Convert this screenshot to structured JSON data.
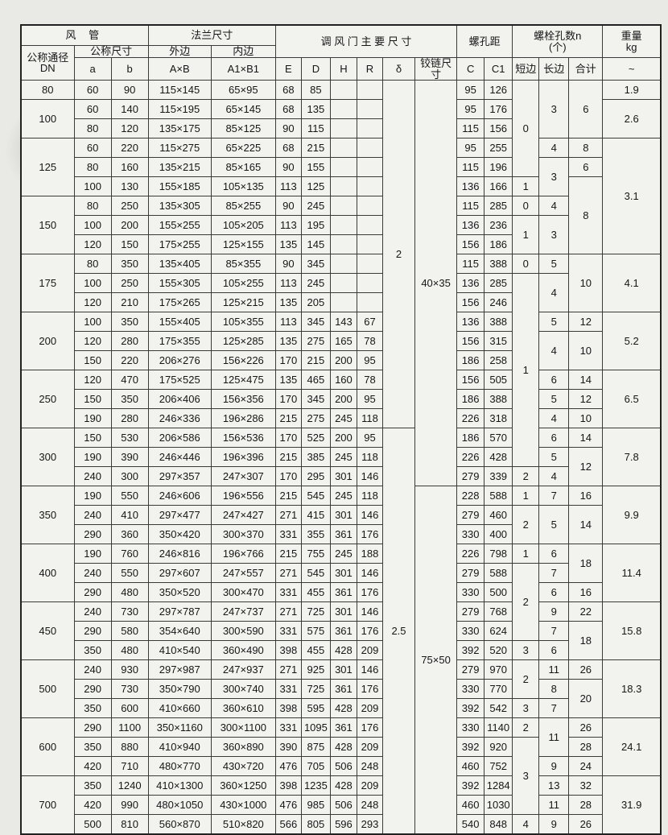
{
  "document": {
    "kind": "scanned specification table",
    "language": "zh-CN"
  },
  "table": {
    "columns": [
      "dn",
      "a",
      "b",
      "outer_AxB",
      "inner_A1xB1",
      "E",
      "D",
      "H",
      "R",
      "delta",
      "hinge_size",
      "C",
      "C1",
      "bolt_short_side",
      "bolt_long_side",
      "bolt_total",
      "weight_kg"
    ],
    "header": {
      "top": [
        {
          "label": "风        管",
          "cs": 3,
          "rs": 1
        },
        {
          "label": "法兰尺寸",
          "cs": 2,
          "rs": 1
        },
        {
          "label": "调 风 门 主 要 尺 寸",
          "cs": 6,
          "rs": 2
        },
        {
          "label": "螺孔距",
          "cs": 2,
          "rs": 2
        },
        {
          "label": "螺栓孔数n\n(个)",
          "cs": 3,
          "rs": 2
        },
        {
          "label": "重量\nkg",
          "cs": 1,
          "rs": 2
        }
      ],
      "mid": [
        {
          "label": "公称通径\nDN",
          "cs": 1,
          "rs": 2
        },
        {
          "label": "公称尺寸",
          "cs": 2,
          "rs": 1
        },
        {
          "label": "外边",
          "cs": 1,
          "rs": 1
        },
        {
          "label": "内边",
          "cs": 1,
          "rs": 1
        }
      ],
      "bottom": [
        "a",
        "b",
        "A×B",
        "A1×B1",
        "E",
        "D",
        "H",
        "R",
        "δ",
        "铰链尺寸",
        "C",
        "C1",
        "短边",
        "长边",
        "合计",
        "~"
      ]
    },
    "rows": [
      [
        "80",
        "60",
        "90",
        "115×145",
        "65×95",
        "68",
        "85",
        "",
        "",
        [
          "2",
          18
        ],
        [
          "40×35",
          21
        ],
        "95",
        "126",
        [
          "0",
          5
        ],
        [
          "3",
          3
        ],
        [
          "6",
          3
        ],
        "1.9"
      ],
      [
        [
          "100",
          2
        ],
        "60",
        "140",
        "115×195",
        "65×145",
        "68",
        "135",
        "",
        "",
        null,
        null,
        "95",
        "176",
        null,
        null,
        null,
        [
          "2.6",
          2
        ]
      ],
      [
        null,
        "80",
        "120",
        "135×175",
        "85×125",
        "90",
        "115",
        "",
        "",
        null,
        null,
        "115",
        "156",
        null,
        null,
        null,
        null
      ],
      [
        [
          "125",
          3
        ],
        "60",
        "220",
        "115×275",
        "65×225",
        "68",
        "215",
        "",
        "",
        null,
        null,
        "95",
        "255",
        null,
        "4",
        "8",
        [
          "3.1",
          6
        ]
      ],
      [
        null,
        "80",
        "160",
        "135×215",
        "85×165",
        "90",
        "155",
        "",
        "",
        null,
        null,
        "115",
        "196",
        null,
        [
          "3",
          2
        ],
        "6",
        null
      ],
      [
        null,
        "100",
        "130",
        "155×185",
        "105×135",
        "113",
        "125",
        "",
        "",
        null,
        null,
        "136",
        "166",
        "1",
        null,
        [
          "8",
          4
        ],
        null
      ],
      [
        [
          "150",
          3
        ],
        "80",
        "250",
        "135×305",
        "85×255",
        "90",
        "245",
        "",
        "",
        null,
        null,
        "115",
        "285",
        "0",
        "4",
        null,
        null
      ],
      [
        null,
        "100",
        "200",
        "155×255",
        "105×205",
        "113",
        "195",
        "",
        "",
        null,
        null,
        "136",
        "236",
        [
          "1",
          2
        ],
        [
          "3",
          2
        ],
        null,
        null
      ],
      [
        null,
        "120",
        "150",
        "175×255",
        "125×155",
        "135",
        "145",
        "",
        "",
        null,
        null,
        "156",
        "186",
        null,
        null,
        null,
        null
      ],
      [
        [
          "175",
          3
        ],
        "80",
        "350",
        "135×405",
        "85×355",
        "90",
        "345",
        "",
        "",
        null,
        null,
        "115",
        "388",
        "0",
        "5",
        [
          "10",
          3
        ],
        [
          "4.1",
          3
        ]
      ],
      [
        null,
        "100",
        "250",
        "155×305",
        "105×255",
        "113",
        "245",
        "",
        "",
        null,
        null,
        "136",
        "285",
        [
          "1",
          10
        ],
        [
          "4",
          2
        ],
        null,
        null
      ],
      [
        null,
        "120",
        "210",
        "175×265",
        "125×215",
        "135",
        "205",
        "",
        "",
        null,
        null,
        "156",
        "246",
        null,
        null,
        null,
        null
      ],
      [
        [
          "200",
          3
        ],
        "100",
        "350",
        "155×405",
        "105×355",
        "113",
        "345",
        "143",
        "67",
        null,
        null,
        "136",
        "388",
        null,
        "5",
        "12",
        [
          "5.2",
          3
        ]
      ],
      [
        null,
        "120",
        "280",
        "175×355",
        "125×285",
        "135",
        "275",
        "165",
        "78",
        null,
        null,
        "156",
        "315",
        null,
        [
          "4",
          2
        ],
        [
          "10",
          2
        ],
        null
      ],
      [
        null,
        "150",
        "220",
        "206×276",
        "156×226",
        "170",
        "215",
        "200",
        "95",
        null,
        null,
        "186",
        "258",
        null,
        null,
        null,
        null
      ],
      [
        [
          "250",
          3
        ],
        "120",
        "470",
        "175×525",
        "125×475",
        "135",
        "465",
        "160",
        "78",
        null,
        null,
        "156",
        "505",
        null,
        "6",
        "14",
        [
          "6.5",
          3
        ]
      ],
      [
        null,
        "150",
        "350",
        "206×406",
        "156×356",
        "170",
        "345",
        "200",
        "95",
        null,
        null,
        "186",
        "388",
        null,
        "5",
        "12",
        null
      ],
      [
        null,
        "190",
        "280",
        "246×336",
        "196×286",
        "215",
        "275",
        "245",
        "118",
        null,
        null,
        "226",
        "318",
        null,
        "4",
        "10",
        null
      ],
      [
        [
          "300",
          3
        ],
        "150",
        "530",
        "206×586",
        "156×536",
        "170",
        "525",
        "200",
        "95",
        [
          "2.5",
          21
        ],
        null,
        "186",
        "570",
        null,
        "6",
        "14",
        [
          "7.8",
          3
        ]
      ],
      [
        null,
        "190",
        "390",
        "246×446",
        "196×396",
        "215",
        "385",
        "245",
        "118",
        null,
        null,
        "226",
        "428",
        null,
        "5",
        [
          "12",
          2
        ],
        null
      ],
      [
        null,
        "240",
        "300",
        "297×357",
        "247×307",
        "170",
        "295",
        "301",
        "146",
        null,
        null,
        "279",
        "339",
        "2",
        "4",
        null,
        null
      ],
      [
        [
          "350",
          3
        ],
        "190",
        "550",
        "246×606",
        "196×556",
        "215",
        "545",
        "245",
        "118",
        null,
        [
          "75×50",
          18
        ],
        "228",
        "588",
        "1",
        "7",
        "16",
        [
          "9.9",
          3
        ]
      ],
      [
        null,
        "240",
        "410",
        "297×477",
        "247×427",
        "271",
        "415",
        "301",
        "146",
        null,
        null,
        "279",
        "460",
        [
          "2",
          2
        ],
        [
          "5",
          2
        ],
        [
          "14",
          2
        ],
        null
      ],
      [
        null,
        "290",
        "360",
        "350×420",
        "300×370",
        "331",
        "355",
        "361",
        "176",
        null,
        null,
        "330",
        "400",
        null,
        null,
        null,
        null
      ],
      [
        [
          "400",
          3
        ],
        "190",
        "760",
        "246×816",
        "196×766",
        "215",
        "755",
        "245",
        "188",
        null,
        null,
        "226",
        "798",
        "1",
        "6",
        [
          "18",
          2
        ],
        [
          "11.4",
          3
        ]
      ],
      [
        null,
        "240",
        "550",
        "297×607",
        "247×557",
        "271",
        "545",
        "301",
        "146",
        null,
        null,
        "279",
        "588",
        [
          "2",
          4
        ],
        "7",
        null,
        null
      ],
      [
        null,
        "290",
        "480",
        "350×520",
        "300×470",
        "331",
        "455",
        "361",
        "176",
        null,
        null,
        "330",
        "500",
        null,
        "6",
        "16",
        null
      ],
      [
        [
          "450",
          3
        ],
        "240",
        "730",
        "297×787",
        "247×737",
        "271",
        "725",
        "301",
        "146",
        null,
        null,
        "279",
        "768",
        null,
        "9",
        "22",
        [
          "15.8",
          3
        ]
      ],
      [
        null,
        "290",
        "580",
        "354×640",
        "300×590",
        "331",
        "575",
        "361",
        "176",
        null,
        null,
        "330",
        "624",
        null,
        "7",
        [
          "18",
          2
        ],
        null
      ],
      [
        null,
        "350",
        "480",
        "410×540",
        "360×490",
        "398",
        "455",
        "428",
        "209",
        null,
        null,
        "392",
        "520",
        "3",
        "6",
        null,
        null
      ],
      [
        [
          "500",
          3
        ],
        "240",
        "930",
        "297×987",
        "247×937",
        "271",
        "925",
        "301",
        "146",
        null,
        null,
        "279",
        "970",
        [
          "2",
          2
        ],
        "11",
        "26",
        [
          "18.3",
          3
        ]
      ],
      [
        null,
        "290",
        "730",
        "350×790",
        "300×740",
        "331",
        "725",
        "361",
        "176",
        null,
        null,
        "330",
        "770",
        null,
        "8",
        [
          "20",
          2
        ],
        null
      ],
      [
        null,
        "350",
        "600",
        "410×660",
        "360×610",
        "398",
        "595",
        "428",
        "209",
        null,
        null,
        "392",
        "542",
        "3",
        "7",
        null,
        null
      ],
      [
        [
          "600",
          3
        ],
        "290",
        "1100",
        "350×1160",
        "300×1100",
        "331",
        "1095",
        "361",
        "176",
        null,
        null,
        "330",
        "1140",
        "2",
        [
          "11",
          2
        ],
        "26",
        [
          "24.1",
          3
        ]
      ],
      [
        null,
        "350",
        "880",
        "410×940",
        "360×890",
        "390",
        "875",
        "428",
        "209",
        null,
        null,
        "392",
        "920",
        [
          "3",
          4
        ],
        null,
        "28",
        null
      ],
      [
        null,
        "420",
        "710",
        "480×770",
        "430×720",
        "476",
        "705",
        "506",
        "248",
        null,
        null,
        "460",
        "752",
        null,
        "9",
        "24",
        null
      ],
      [
        [
          "700",
          3
        ],
        "350",
        "1240",
        "410×1300",
        "360×1250",
        "398",
        "1235",
        "428",
        "209",
        null,
        null,
        "392",
        "1284",
        null,
        "13",
        "32",
        [
          "31.9",
          3
        ]
      ],
      [
        null,
        "420",
        "990",
        "480×1050",
        "430×1000",
        "476",
        "985",
        "506",
        "248",
        null,
        null,
        "460",
        "1030",
        null,
        "11",
        "28",
        null
      ],
      [
        null,
        "500",
        "810",
        "560×870",
        "510×820",
        "566",
        "805",
        "596",
        "293",
        null,
        null,
        "540",
        "848",
        "4",
        "9",
        "26",
        null
      ]
    ]
  }
}
